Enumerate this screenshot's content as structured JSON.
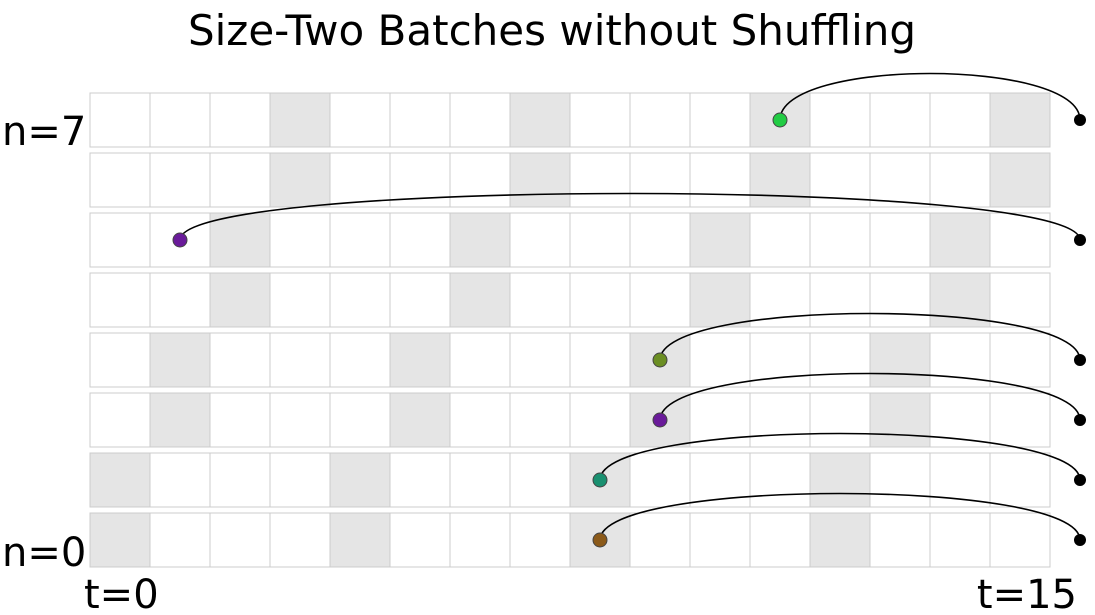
{
  "title": "Size-Two Batches without Shuffling",
  "labels": {
    "n_top": "n=7",
    "n_bottom": "n=0",
    "t_left": "t=0",
    "t_right": "t=15"
  },
  "grid": {
    "rows": 8,
    "cols": 16,
    "cell_color": "#ffffff",
    "shaded_color": "#e5e5e5",
    "shaded": {
      "0": [
        0,
        4,
        8,
        12
      ],
      "1": [
        0,
        4,
        8,
        12
      ],
      "2": [
        1,
        5,
        9,
        13
      ],
      "3": [
        1,
        5,
        9,
        13
      ],
      "4": [
        2,
        6,
        10,
        14
      ],
      "5": [
        2,
        6,
        10,
        14
      ],
      "6": [
        3,
        7,
        11,
        15
      ],
      "7": [
        3,
        7,
        11,
        15
      ]
    }
  },
  "arcs": [
    {
      "from_row": 7,
      "from_t": 11.5,
      "to_row": 7,
      "color": "#22cc44"
    },
    {
      "from_row": 5,
      "from_t": 1.5,
      "to_row": 5,
      "color": "#6a1b9a"
    },
    {
      "from_row": 3,
      "from_t": 9.5,
      "to_row": 3,
      "color": "#6b8e23"
    },
    {
      "from_row": 2,
      "from_t": 9.5,
      "to_row": 2,
      "color": "#6a1b9a"
    },
    {
      "from_row": 1,
      "from_t": 8.5,
      "to_row": 1,
      "color": "#1a9070"
    },
    {
      "from_row": 0,
      "from_t": 8.5,
      "to_row": 0,
      "color": "#8b5a1a"
    }
  ]
}
